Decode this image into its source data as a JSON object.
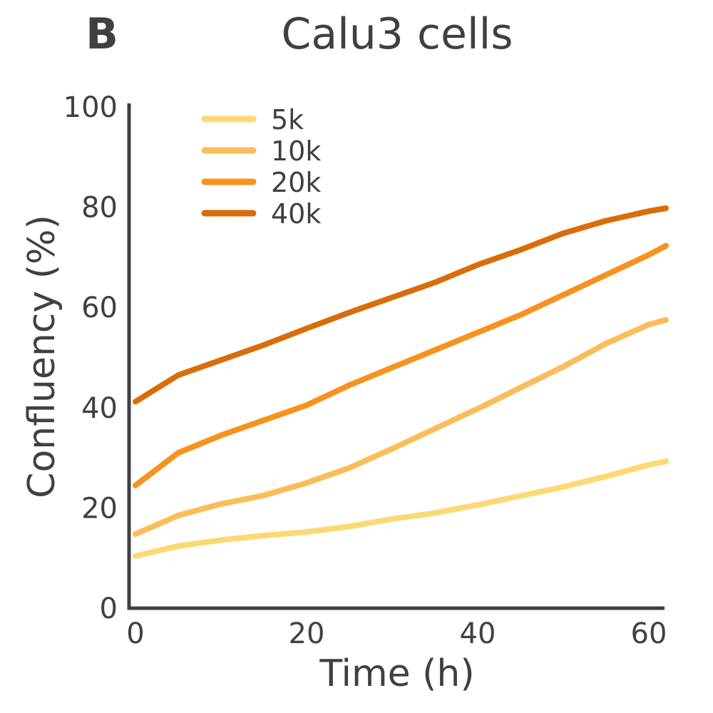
{
  "panel_label": "B",
  "chart_data": {
    "type": "line",
    "title": "Calu3 cells",
    "xlabel": "Time (h)",
    "ylabel": "Confluency (%)",
    "xlim": [
      0,
      62
    ],
    "ylim": [
      0,
      100
    ],
    "xticks": [
      0,
      20,
      40,
      60
    ],
    "yticks": [
      0,
      20,
      40,
      60,
      80,
      100
    ],
    "grid": false,
    "legend_position": "top-left",
    "x": [
      0,
      5,
      10,
      15,
      20,
      25,
      30,
      35,
      40,
      45,
      50,
      55,
      60,
      62
    ],
    "series": [
      {
        "name": "5k",
        "color": "#fcd975",
        "values": [
          10.4,
          12.4,
          13.6,
          14.5,
          15.2,
          16.3,
          17.8,
          19.0,
          20.6,
          22.4,
          24.2,
          26.3,
          28.6,
          29.3
        ]
      },
      {
        "name": "10k",
        "color": "#fbbd5a",
        "values": [
          14.8,
          18.5,
          20.8,
          22.5,
          25.0,
          28.0,
          31.8,
          35.8,
          39.8,
          44.0,
          48.2,
          52.8,
          56.6,
          57.5
        ]
      },
      {
        "name": "20k",
        "color": "#f7921e",
        "values": [
          24.5,
          31.0,
          34.5,
          37.5,
          40.5,
          44.5,
          48.0,
          51.5,
          55.0,
          58.5,
          62.5,
          66.5,
          70.5,
          72.3
        ]
      },
      {
        "name": "40k",
        "color": "#d96d0a",
        "values": [
          41.2,
          46.5,
          49.5,
          52.5,
          55.8,
          59.0,
          62.0,
          65.0,
          68.5,
          71.5,
          74.8,
          77.3,
          79.2,
          79.8
        ]
      }
    ]
  }
}
